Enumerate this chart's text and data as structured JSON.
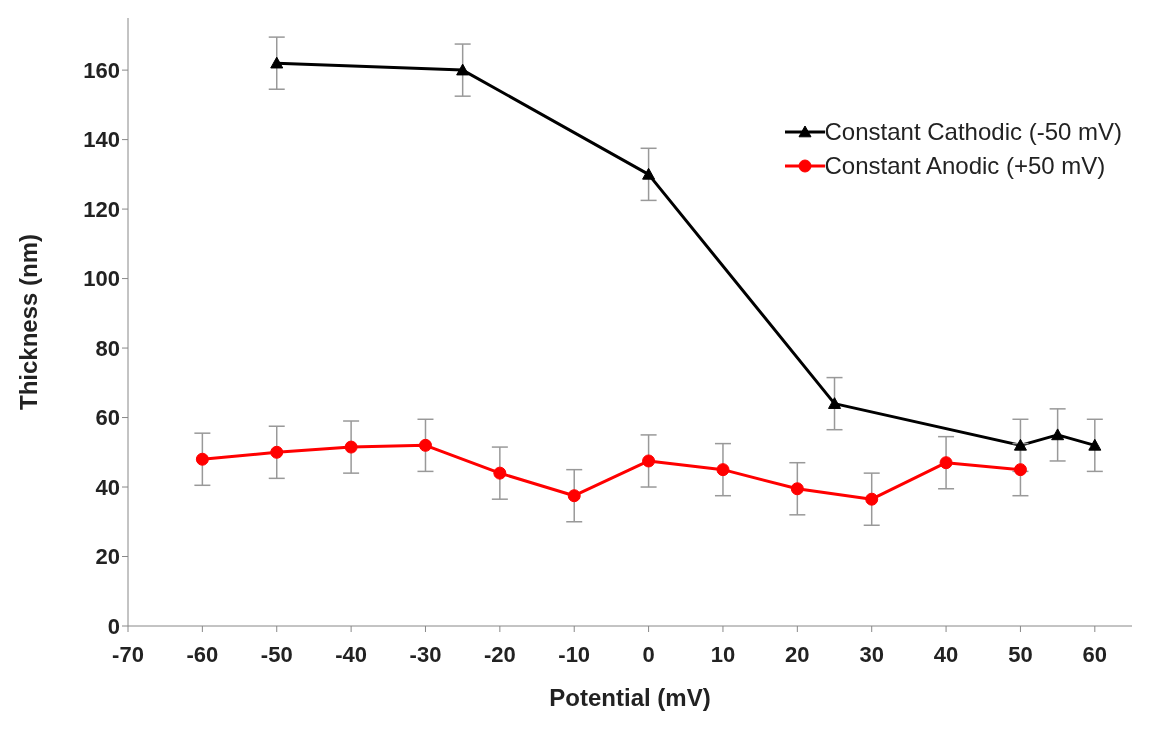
{
  "chart_data": {
    "type": "line",
    "xlabel": "Potential (mV)",
    "ylabel": "Thickness (nm)",
    "xlim": [
      -70,
      65
    ],
    "xticks": [
      -70,
      -60,
      -50,
      -40,
      -30,
      -20,
      -10,
      0,
      10,
      20,
      30,
      40,
      50,
      60
    ],
    "ylim": [
      0,
      175
    ],
    "yticks": [
      0,
      20,
      40,
      60,
      80,
      100,
      120,
      140,
      160
    ],
    "grid": false,
    "legend": "top right",
    "series": [
      {
        "name": "Constant Cathodic (-50 mV)",
        "color": "#000000",
        "marker": "triangle",
        "x": [
          -50,
          -25,
          0,
          25,
          50,
          55,
          60
        ],
        "values": [
          162,
          160,
          130,
          64,
          52,
          55,
          52
        ],
        "errors": [
          7.5,
          7.5,
          7.5,
          7.5,
          7.5,
          7.5,
          7.5
        ]
      },
      {
        "name": "Constant Anodic (+50 mV)",
        "color": "#ff0000",
        "marker": "circle",
        "x": [
          -60,
          -50,
          -40,
          -30,
          -20,
          -10,
          0,
          10,
          20,
          30,
          40,
          50
        ],
        "values": [
          48,
          50,
          51.5,
          52,
          44,
          37.5,
          47.5,
          45,
          39.5,
          36.5,
          47,
          45
        ],
        "errors": [
          7.5,
          7.5,
          7.5,
          7.5,
          7.5,
          7.5,
          7.5,
          7.5,
          7.5,
          7.5,
          7.5,
          7.5
        ]
      }
    ]
  }
}
